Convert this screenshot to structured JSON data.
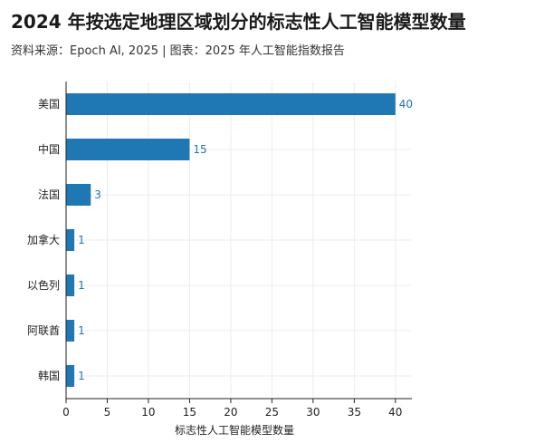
{
  "header": {
    "title": "2024 年按选定地理区域划分的标志性人工智能模型数量",
    "subtitle": "资料来源：Epoch AI, 2025 | 图表：2025 年人工智能指数报告"
  },
  "chart_data": {
    "type": "bar",
    "orientation": "horizontal",
    "categories": [
      "美国",
      "中国",
      "法国",
      "加拿大",
      "以色列",
      "阿联酋",
      "韩国"
    ],
    "values": [
      40,
      15,
      3,
      1,
      1,
      1,
      1
    ],
    "xlabel": "标志性人工智能模型数量",
    "ylabel": "",
    "xlim": [
      0,
      42
    ],
    "xticks": [
      0,
      5,
      10,
      15,
      20,
      25,
      30,
      35,
      40
    ],
    "grid": true,
    "colors": {
      "bar": "#1f77b4",
      "value_label": "#1f77b4",
      "grid": "#ececec",
      "axis": "#222222"
    }
  }
}
